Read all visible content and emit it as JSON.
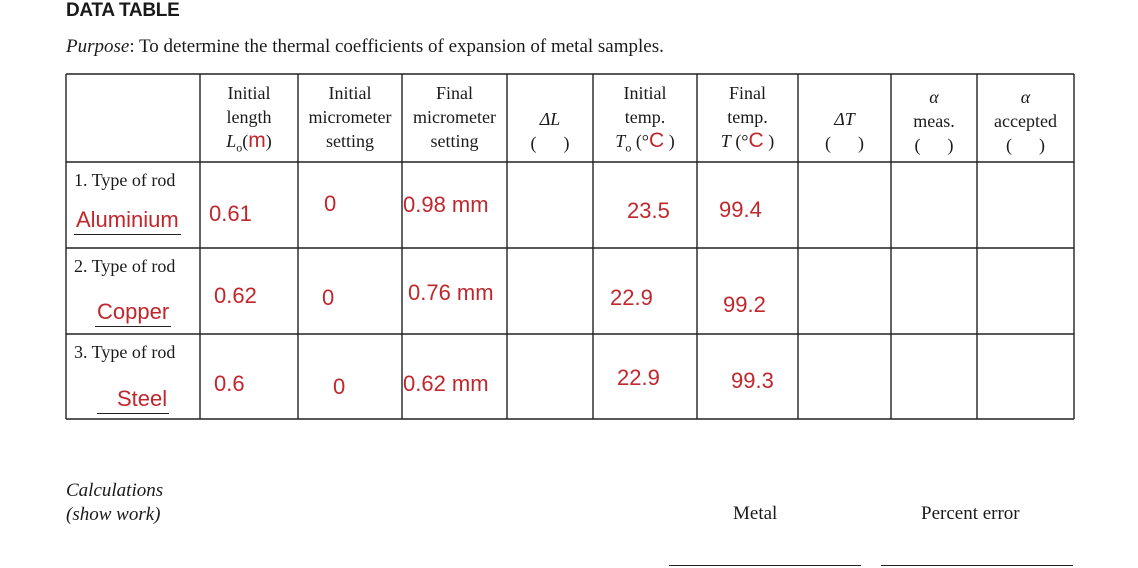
{
  "title": "DATA TABLE",
  "purpose": {
    "label": "Purpose",
    "text": ": To determine the thermal coefficients of expansion of metal samples."
  },
  "headers": {
    "length": {
      "l1": "Initial",
      "l2": "length",
      "sym": "L",
      "sub": "o",
      "open": "(",
      "unit": "m",
      "close": ")"
    },
    "init_micro": {
      "l1": "Initial",
      "l2": "micrometer",
      "l3": "setting"
    },
    "final_micro": {
      "l1": "Final",
      "l2": "micrometer",
      "l3": "setting"
    },
    "dl": {
      "sym": "ΔL",
      "unit": "(      )"
    },
    "init_temp": {
      "l1": "Initial",
      "l2": "temp.",
      "sym": "T",
      "sub": "o",
      "open": "(°",
      "unit": "C",
      "close": ")"
    },
    "final_temp": {
      "l1": "Final",
      "l2": "temp.",
      "sym": "T",
      "open": "(°",
      "unit": "C",
      "close": ")"
    },
    "dt": {
      "sym": "ΔT",
      "unit": "(      )"
    },
    "alpha_meas": {
      "sym": "α",
      "l2": "meas.",
      "unit": "(      )"
    },
    "alpha_acc": {
      "sym": "α",
      "l2": "accepted",
      "unit": "(      )"
    }
  },
  "rows": [
    {
      "label": "1. Type of rod",
      "rod": "Aluminium",
      "length": "0.61",
      "init_micro": "0",
      "final_micro": "0.98 mm",
      "init_temp": "23.5",
      "final_temp": "99.4"
    },
    {
      "label": "2. Type of rod",
      "rod": "Copper",
      "length": "0.62",
      "init_micro": "0",
      "final_micro": "0.76 mm",
      "init_temp": "22.9",
      "final_temp": "99.2"
    },
    {
      "label": "3. Type of rod",
      "rod": "Steel",
      "length": "0.6",
      "init_micro": "0",
      "final_micro": "0.62 mm",
      "init_temp": "22.9",
      "final_temp": "99.3"
    }
  ],
  "calculations": {
    "l1": "Calculations",
    "l2": "(show work)"
  },
  "footer": {
    "metal": "Metal",
    "percent_error": "Percent error"
  }
}
